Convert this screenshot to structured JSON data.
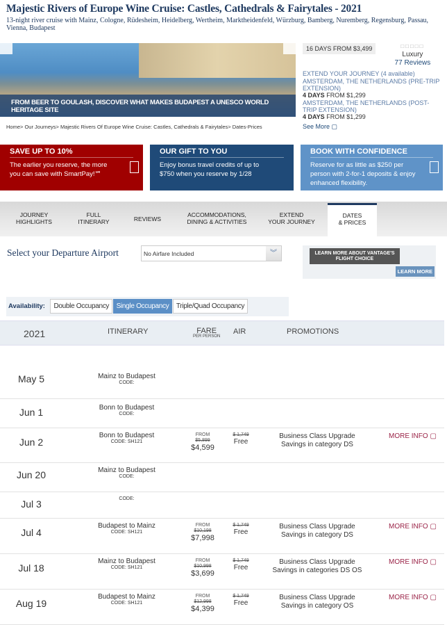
{
  "header": {
    "title": "Majestic Rivers of Europe Wine Cruise: Castles, Cathedrals & Fairytales - 2021",
    "subtitle": "13-night river cruise with Mainz, Cologne, Rüdesheim, Heidelberg, Wertheim, Marktheidenfeld, Würzburg, Bamberg, Nuremberg, Regensburg, Passau, Vienna, Budapest"
  },
  "hero": {
    "caption": "FROM BEER TO GOULASH, DISCOVER WHAT MAKES BUDAPEST A UNESCO WORLD HERITAGE SITE"
  },
  "side": {
    "days": "16 DAYS",
    "from": "FROM $3,499",
    "rating_stars": 5,
    "level": "Luxury",
    "reviews": "77 Reviews",
    "extend_title": "EXTEND YOUR JOURNEY",
    "extend_count": "(4 available)",
    "extensions": [
      {
        "name": "AMSTERDAM, THE NETHERLANDS (PRE-TRIP EXTENSION)",
        "days": "4 DAYS",
        "price": "FROM $1,299"
      },
      {
        "name": "AMSTERDAM, THE NETHERLANDS (POST-TRIP EXTENSION)",
        "days": "4 DAYS",
        "price": "FROM $1,299"
      }
    ],
    "see_more": "See More ▢"
  },
  "breadcrumb": "Home> Our Journeys> Majestic Rivers Of Europe Wine Cruise: Castles, Cathedrals & Fairytales> Dates-Prices",
  "promos": [
    {
      "title": "SAVE UP TO 10%",
      "text": "The earlier you reserve, the more you can save with SmartPay!℠",
      "color": "#a00000"
    },
    {
      "title": "OUR GIFT TO YOU",
      "text": "Enjoy bonus travel credits of up to $750 when you reserve by 1/28",
      "color": "#1f4a78"
    },
    {
      "title": "BOOK WITH CONFIDENCE",
      "text": "Reserve for as little as $250 per person with 2-for-1 deposits & enjoy enhanced flexibility.",
      "color": "#5f93c8"
    }
  ],
  "tabs": [
    {
      "l1": "JOURNEY",
      "l2": "HIGHLIGHTS"
    },
    {
      "l1": "FULL",
      "l2": "ITINERARY"
    },
    {
      "l1": "REVIEWS",
      "l2": ""
    },
    {
      "l1": "ACCOMMODATIONS,",
      "l2": "DINING & ACTIVITIES"
    },
    {
      "l1": "EXTEND",
      "l2": "YOUR JOURNEY"
    },
    {
      "l1": "DATES",
      "l2": "& PRICES"
    }
  ],
  "airport": {
    "label": "Select your Departure Airport",
    "value": "No Airfare Included",
    "learn_text": "LEARN MORE ABOUT VANTAGE'S FLIGHT CHOICE",
    "learn_button": "LEARN MORE"
  },
  "availability": {
    "label": "Availability:",
    "options": [
      "Double Occupancy",
      "Single Occupancy",
      "Triple/Quad Occupancy"
    ],
    "selected": "Single Occupancy"
  },
  "table": {
    "year": "2021",
    "headers": {
      "itinerary": "ITINERARY",
      "fare": "FARE",
      "fare_sub": "PER PERSON",
      "air": "AIR",
      "promotions": "PROMOTIONS"
    },
    "rows": [
      {
        "date": "May 5",
        "route": "Mainz to Budapest",
        "code": "CODE:"
      },
      {
        "date": "Jun 1",
        "route": "Bonn to Budapest",
        "code": "CODE:"
      },
      {
        "date": "Jun 2",
        "route": "Bonn to Budapest",
        "code": "CODE: SH121",
        "from": "FROM",
        "orig": "$5,899",
        "price": "$4,599",
        "air_orig": "$ 1,749",
        "air": "Free",
        "promo1": "Business Class Upgrade",
        "promo2": "Savings in category DS",
        "more": "MORE INFO ▢"
      },
      {
        "date": "Jun 20",
        "route": "Mainz to Budapest",
        "code": "CODE:"
      },
      {
        "date": "Jul 3",
        "route": "",
        "code": "CODE:"
      },
      {
        "date": "Jul 4",
        "route": "Budapest to Mainz",
        "code": "CODE: SH121",
        "from": "FROM",
        "orig": "$10,198",
        "price": "$7,998",
        "air_orig": "$ 1,749",
        "air": "Free",
        "promo1": "Business Class Upgrade",
        "promo2": "Savings in category DS",
        "more": "MORE INFO ▢"
      },
      {
        "date": "Jul 18",
        "route": "Mainz to Budapest",
        "code": "CODE: SH121",
        "from": "FROM",
        "orig": "$10,998",
        "price": "$3,699",
        "air_orig": "$ 1,749",
        "air": "Free",
        "promo1": "Business Class Upgrade",
        "promo2": "Savings in categories DS OS",
        "more": "MORE INFO ▢"
      },
      {
        "date": "Aug 19",
        "route": "Budapest to Mainz",
        "code": "CODE: SH121",
        "from": "FROM",
        "orig": "$12,998",
        "price": "$4,399",
        "air_orig": "$ 1,749",
        "air": "Free",
        "promo1": "Business Class Upgrade",
        "promo2": "Savings in category OS",
        "more": "MORE INFO ▢"
      }
    ]
  }
}
